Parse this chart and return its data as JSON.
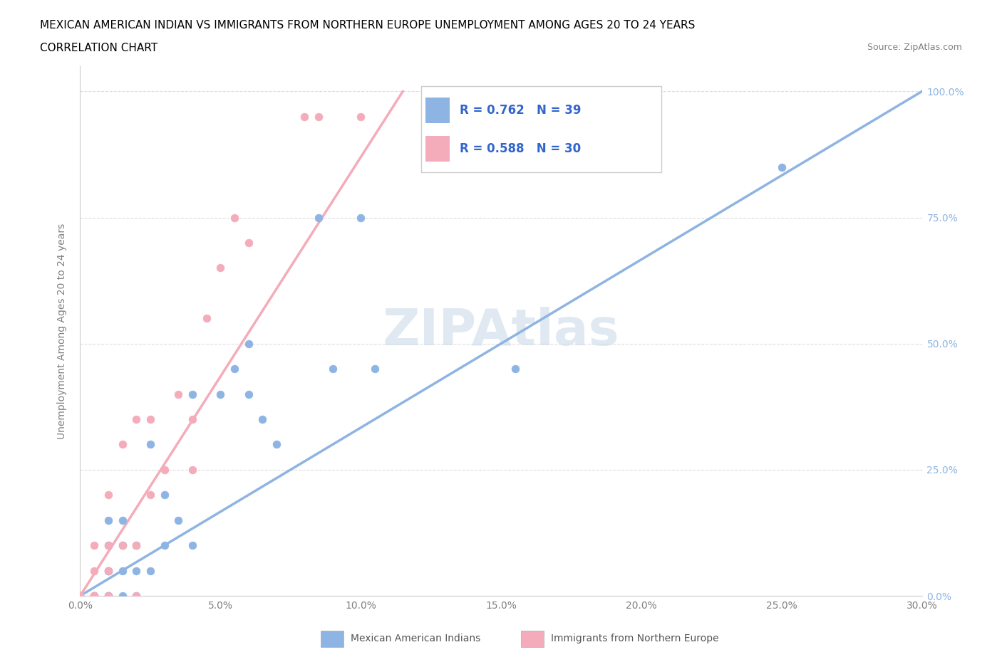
{
  "title_line1": "MEXICAN AMERICAN INDIAN VS IMMIGRANTS FROM NORTHERN EUROPE UNEMPLOYMENT AMONG AGES 20 TO 24 YEARS",
  "title_line2": "CORRELATION CHART",
  "source": "Source: ZipAtlas.com",
  "xlabel_ticks": [
    "0.0%",
    "5.0%",
    "10.0%",
    "15.0%",
    "20.0%",
    "25.0%",
    "30.0%"
  ],
  "ylabel_ticks": [
    "0.0%",
    "25.0%",
    "50.0%",
    "75.0%",
    "100.0%"
  ],
  "ylabel": "Unemployment Among Ages 20 to 24 years",
  "legend_label1": "Mexican American Indians",
  "legend_label2": "Immigrants from Northern Europe",
  "legend_R1": "R = 0.762",
  "legend_N1": "N = 39",
  "legend_R2": "R = 0.588",
  "legend_N2": "N = 30",
  "color_blue": "#8EB4E3",
  "color_pink": "#F4ACBA",
  "watermark": "ZIPAtlas",
  "blue_scatter_x": [
    0.0,
    0.0,
    0.005,
    0.005,
    0.005,
    0.005,
    0.01,
    0.01,
    0.01,
    0.01,
    0.01,
    0.01,
    0.01,
    0.015,
    0.015,
    0.015,
    0.015,
    0.02,
    0.02,
    0.02,
    0.025,
    0.025,
    0.03,
    0.03,
    0.035,
    0.04,
    0.04,
    0.05,
    0.055,
    0.06,
    0.06,
    0.065,
    0.07,
    0.085,
    0.09,
    0.1,
    0.105,
    0.155,
    0.25
  ],
  "blue_scatter_y": [
    0.0,
    0.0,
    0.0,
    0.0,
    0.0,
    0.0,
    0.0,
    0.0,
    0.0,
    0.05,
    0.05,
    0.1,
    0.15,
    0.0,
    0.05,
    0.1,
    0.15,
    0.0,
    0.05,
    0.1,
    0.05,
    0.3,
    0.1,
    0.2,
    0.15,
    0.1,
    0.4,
    0.4,
    0.45,
    0.4,
    0.5,
    0.35,
    0.3,
    0.75,
    0.45,
    0.75,
    0.45,
    0.45,
    0.85
  ],
  "pink_scatter_x": [
    0.0,
    0.0,
    0.0,
    0.005,
    0.005,
    0.005,
    0.005,
    0.005,
    0.01,
    0.01,
    0.01,
    0.01,
    0.015,
    0.015,
    0.02,
    0.02,
    0.02,
    0.025,
    0.025,
    0.03,
    0.035,
    0.04,
    0.04,
    0.045,
    0.05,
    0.055,
    0.06,
    0.08,
    0.085,
    0.1
  ],
  "pink_scatter_y": [
    0.0,
    0.0,
    0.0,
    0.0,
    0.0,
    0.0,
    0.05,
    0.1,
    0.0,
    0.05,
    0.1,
    0.2,
    0.1,
    0.3,
    0.0,
    0.1,
    0.35,
    0.2,
    0.35,
    0.25,
    0.4,
    0.25,
    0.35,
    0.55,
    0.65,
    0.75,
    0.7,
    0.95,
    0.95,
    0.95
  ],
  "blue_line_x": [
    0.0,
    0.3
  ],
  "blue_line_y": [
    0.0,
    1.0
  ],
  "pink_line_x": [
    0.0,
    0.115
  ],
  "pink_line_y": [
    0.0,
    1.0
  ],
  "ref_line_x": [
    0.0,
    0.3
  ],
  "ref_line_y": [
    0.0,
    1.0
  ],
  "xlim": [
    0.0,
    0.3
  ],
  "ylim": [
    0.0,
    1.05
  ]
}
